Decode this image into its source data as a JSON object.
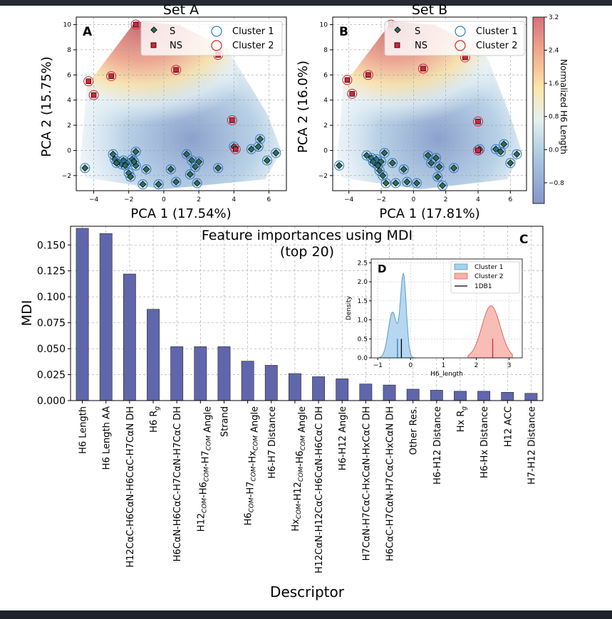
{
  "chart_data": [
    {
      "panel": "A",
      "type": "scatter",
      "title": "Set A",
      "xlabel": "PCA 1 (17.54%)",
      "ylabel": "PCA 2 (15.75%)",
      "xlim": [
        -5,
        7
      ],
      "ylim": [
        -3.2,
        10.6
      ],
      "xticks": [
        -4,
        -2,
        0,
        2,
        4,
        6
      ],
      "yticks": [
        -2,
        0,
        2,
        4,
        6,
        8,
        10
      ],
      "grid": true,
      "legend": {
        "position": "top-right",
        "entries": [
          "S",
          "NS",
          "Cluster 1",
          "Cluster 2"
        ]
      },
      "series": [
        {
          "name": "S",
          "marker": "diamond",
          "color": "#2f6b5a",
          "cluster": 1,
          "points": [
            [
              -4.5,
              -1.4
            ],
            [
              -2.1,
              -1.0
            ],
            [
              -1.8,
              -0.7
            ],
            [
              -1.6,
              -1.2
            ],
            [
              -1.2,
              -2.7
            ],
            [
              -1.0,
              -1.5
            ],
            [
              -0.3,
              -2.7
            ],
            [
              0.4,
              -1.5
            ],
            [
              0.7,
              -2.5
            ],
            [
              1.3,
              -0.3
            ],
            [
              1.5,
              -1.9
            ],
            [
              1.6,
              -0.8
            ],
            [
              1.8,
              -1.3
            ],
            [
              1.9,
              -2.6
            ],
            [
              2.0,
              -0.9
            ],
            [
              3.1,
              -1.4
            ],
            [
              4.0,
              0.3
            ],
            [
              5.0,
              0.1
            ],
            [
              5.4,
              0.3
            ],
            [
              5.5,
              0.9
            ],
            [
              5.9,
              -0.8
            ],
            [
              6.4,
              -0.2
            ],
            [
              -2.9,
              -0.3
            ],
            [
              -2.8,
              -0.7
            ],
            [
              -2.6,
              -0.9
            ],
            [
              -2.4,
              -1.1
            ],
            [
              -2.3,
              -0.8
            ],
            [
              -2.0,
              -1.8
            ],
            [
              -1.9,
              -2.1
            ],
            [
              -1.6,
              -0.1
            ],
            [
              -1.7,
              -0.9
            ],
            [
              -2.2,
              -1.2
            ],
            [
              -2.7,
              -1.0
            ]
          ]
        },
        {
          "name": "NS",
          "marker": "square",
          "color": "#d6243a",
          "cluster": 2,
          "points": [
            [
              -1.6,
              10.0
            ],
            [
              -4.3,
              5.5
            ],
            [
              -4.0,
              4.4
            ],
            [
              -3.0,
              5.9
            ],
            [
              0.7,
              6.4
            ],
            [
              3.1,
              7.6
            ],
            [
              3.9,
              2.4
            ],
            [
              4.1,
              0.1
            ]
          ]
        }
      ]
    },
    {
      "panel": "B",
      "type": "scatter",
      "title": "Set B",
      "xlabel": "PCA 1 (17.81%)",
      "ylabel": "PCA 2 (16.0%)",
      "xlim": [
        -5,
        7
      ],
      "ylim": [
        -3.2,
        10.6
      ],
      "xticks": [
        -4,
        -2,
        0,
        2,
        4,
        6
      ],
      "yticks": [
        -2,
        0,
        2,
        4,
        6,
        8,
        10
      ],
      "grid": true,
      "legend": {
        "position": "top-right",
        "entries": [
          "S",
          "NS",
          "Cluster 1",
          "Cluster 2"
        ]
      },
      "colorbar": {
        "label": "Normalized H6 Length",
        "ticks": [
          3.2,
          2.4,
          1.6,
          0.8,
          0.0,
          -0.8
        ],
        "range": [
          -1.3,
          3.2
        ]
      },
      "series": [
        {
          "name": "S",
          "marker": "diamond",
          "color": "#2f6b5a",
          "cluster": 1,
          "points": [
            [
              -4.6,
              -1.2
            ],
            [
              -2.9,
              -0.4
            ],
            [
              -2.6,
              -0.6
            ],
            [
              -2.4,
              -1.0
            ],
            [
              -2.3,
              -0.7
            ],
            [
              -2.1,
              -1.6
            ],
            [
              -2.0,
              -0.9
            ],
            [
              -1.8,
              -0.2
            ],
            [
              -1.7,
              -2.6
            ],
            [
              -1.3,
              -1.0
            ],
            [
              -1.1,
              -2.6
            ],
            [
              -0.6,
              -1.5
            ],
            [
              -0.4,
              -2.5
            ],
            [
              0.2,
              -2.6
            ],
            [
              0.9,
              -0.4
            ],
            [
              1.1,
              -1.0
            ],
            [
              1.4,
              -0.6
            ],
            [
              1.6,
              -1.3
            ],
            [
              1.5,
              -2.1
            ],
            [
              1.8,
              -2.8
            ],
            [
              2.5,
              -1.4
            ],
            [
              4.1,
              0.1
            ],
            [
              5.1,
              0.1
            ],
            [
              5.4,
              -0.1
            ],
            [
              5.6,
              0.5
            ],
            [
              6.0,
              -1.0
            ],
            [
              6.4,
              -0.3
            ],
            [
              -2.5,
              -0.9
            ],
            [
              -2.2,
              -1.2
            ],
            [
              -1.9,
              -2.0
            ]
          ]
        },
        {
          "name": "NS",
          "marker": "square",
          "color": "#d6243a",
          "cluster": 2,
          "points": [
            [
              -1.4,
              10.0
            ],
            [
              -4.1,
              5.6
            ],
            [
              -3.8,
              4.5
            ],
            [
              -2.8,
              6.0
            ],
            [
              0.6,
              6.5
            ],
            [
              3.2,
              7.4
            ],
            [
              4.0,
              2.3
            ],
            [
              4.0,
              0.0
            ]
          ]
        }
      ]
    },
    {
      "panel": "C",
      "type": "bar",
      "title": "Feature importances using MDI\n(top 20)",
      "xlabel": "Descriptor",
      "ylabel": "MDI",
      "ylim": [
        0,
        0.168
      ],
      "yticks": [
        0.0,
        0.025,
        0.05,
        0.075,
        0.1,
        0.125,
        0.15
      ],
      "grid": true,
      "bar_color": "#6066ab",
      "categories": [
        "H6 Length",
        "H6 Length AA",
        "H12CαC-H6CαN-H6CαC-H7CαN DH",
        "H6 R_g",
        "H6CαN-H6CαC-H7CαN-H7CαC DH",
        "H12_COM-H6_COM-H7_COM Angle",
        "Strand",
        "H6_COM-H7_COM-Hx_COM Angle",
        "H6-H7 Distance",
        "Hx_COM-H12_COM-H6_COM Angle",
        "H12CαN-H12CαC-H6CαN-H6CαC DH",
        "H6-H12 Angle",
        "H7CαN-H7CαC-HxCαN-HxCαC DH",
        "H6CαC-H7CαN-H7CαC-HxCαN DH",
        "Other Res.",
        "H6-H12 Distance",
        "Hx R_g",
        "H6-Hx Distance",
        "H12 ACC",
        "H7-H12 Distance"
      ],
      "values": [
        0.166,
        0.161,
        0.122,
        0.088,
        0.052,
        0.052,
        0.052,
        0.038,
        0.034,
        0.026,
        0.023,
        0.021,
        0.016,
        0.015,
        0.011,
        0.01,
        0.009,
        0.009,
        0.008,
        0.007
      ]
    },
    {
      "panel": "D",
      "type": "area",
      "xlabel": "H6_length",
      "ylabel": "Density",
      "xlim": [
        -1.2,
        3.4
      ],
      "ylim": [
        0,
        2.6
      ],
      "xticks": [
        -1,
        0,
        1,
        2,
        3
      ],
      "yticks": [
        0.0,
        0.5,
        1.0,
        1.5,
        2.0,
        2.5
      ],
      "legend": {
        "position": "top-right",
        "entries": [
          "Cluster 1",
          "Cluster 2",
          "1DB1"
        ]
      },
      "series": [
        {
          "name": "Cluster 1",
          "color": "#7fb9e0",
          "peak_x": -0.22,
          "peak_density": 2.47,
          "shoulder_x": -0.55,
          "shoulder_density": 1.2,
          "marker_x": -0.4
        },
        {
          "name": "Cluster 2",
          "color": "#f29a8f",
          "peak_x": 2.45,
          "peak_density": 1.37,
          "marker_x": 2.5
        },
        {
          "name": "1DB1",
          "color": "#000000",
          "x": -0.28
        }
      ]
    }
  ]
}
